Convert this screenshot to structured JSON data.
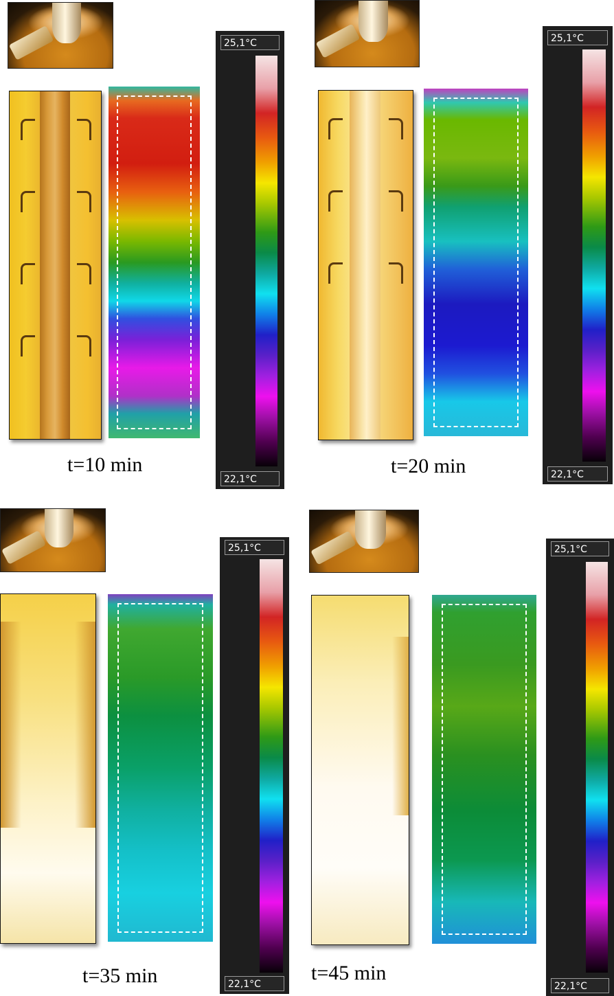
{
  "scale": {
    "max_label": "25,1°C",
    "min_label": "22,1°C"
  },
  "panels": [
    {
      "caption": "t=10 min"
    },
    {
      "caption": "t=20 min"
    },
    {
      "caption": "t=35 min"
    },
    {
      "caption": "t=45 min"
    }
  ]
}
